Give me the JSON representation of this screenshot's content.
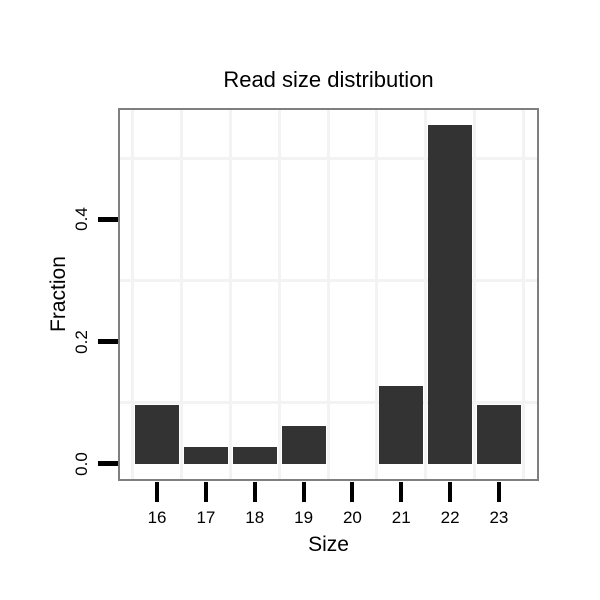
{
  "chart_data": {
    "type": "bar",
    "title": "Read size distribution",
    "xlabel": "Size",
    "ylabel": "Fraction",
    "categories": [
      16,
      17,
      18,
      19,
      20,
      21,
      22,
      23
    ],
    "values": [
      0.097,
      0.028,
      0.028,
      0.062,
      0,
      0.128,
      0.554,
      0.097
    ],
    "x_tick_labels": [
      "16",
      "17",
      "18",
      "19",
      "20",
      "21",
      "22",
      "23"
    ],
    "y_ticks": [
      {
        "value": 0.0,
        "label": "0.0"
      },
      {
        "value": 0.2,
        "label": "0.2"
      },
      {
        "value": 0.4,
        "label": "0.4"
      }
    ],
    "grid": {
      "x_minor": [
        15.5,
        16.5,
        17.5,
        18.5,
        19.5,
        20.5,
        21.5,
        22.5,
        23.5
      ],
      "y_minor": [
        0.1,
        0.3,
        0.5
      ]
    },
    "xlim": [
      15.2,
      23.82
    ],
    "ylim": [
      -0.028,
      0.582
    ],
    "bar_width_units": 0.9,
    "grid_on": true,
    "legend_position": "none",
    "colors": {
      "bar": "#333333",
      "panel_border": "#7f7f7f",
      "grid": "#f3f3f3",
      "tick": "#000000",
      "text": "#000000",
      "background": "#ffffff"
    }
  }
}
